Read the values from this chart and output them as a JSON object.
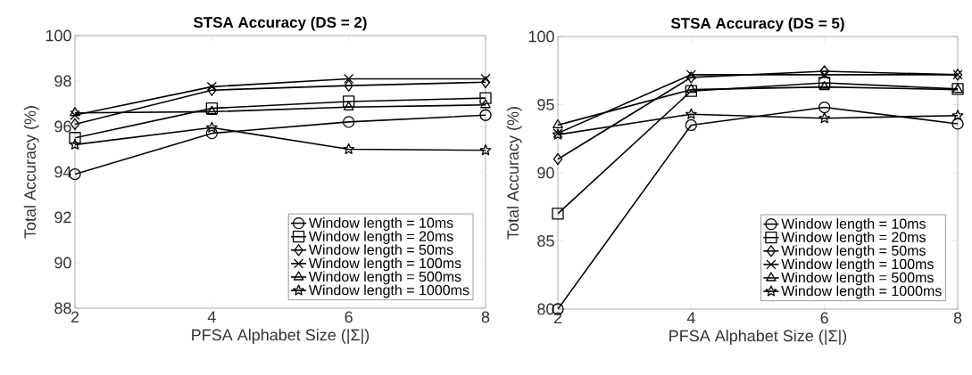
{
  "chart_data": [
    {
      "type": "line",
      "title": "STSA Accuracy (DS = 2)",
      "xlabel": "PFSA Alphabet Size (|Σ|)",
      "ylabel": "Total Accuracy (%)",
      "x": [
        2,
        4,
        6,
        8
      ],
      "xlim": [
        2,
        8
      ],
      "xticks": [
        2,
        4,
        6,
        8
      ],
      "ylim": [
        88,
        100
      ],
      "yticks": [
        88,
        90,
        92,
        94,
        96,
        98,
        100
      ],
      "legend": "bottom right",
      "series": [
        {
          "name": "Window length = 10ms",
          "color": "#000000",
          "marker": "circle",
          "values": [
            93.9,
            95.7,
            96.2,
            96.5
          ]
        },
        {
          "name": "Window length = 20ms",
          "color": "#000000",
          "marker": "square",
          "values": [
            95.5,
            96.8,
            97.1,
            97.25
          ]
        },
        {
          "name": "Window length = 50ms",
          "color": "#000000",
          "marker": "diamond",
          "values": [
            96.1,
            97.6,
            97.8,
            97.95
          ]
        },
        {
          "name": "Window length = 100ms",
          "color": "#000000",
          "marker": "cross",
          "values": [
            96.5,
            97.75,
            98.1,
            98.1
          ]
        },
        {
          "name": "Window length = 500ms",
          "color": "#000000",
          "marker": "triangle",
          "values": [
            96.6,
            96.65,
            96.85,
            96.95
          ]
        },
        {
          "name": "Window length = 1000ms",
          "color": "#000000",
          "marker": "star",
          "values": [
            95.2,
            95.95,
            95.0,
            94.95
          ]
        }
      ]
    },
    {
      "type": "line",
      "title": "STSA Accuracy (DS = 5)",
      "xlabel": "PFSA Alphabet Size (|Σ|)",
      "ylabel": "Total Accuracy (%)",
      "x": [
        2,
        4,
        6,
        8
      ],
      "xlim": [
        2,
        8
      ],
      "xticks": [
        2,
        4,
        6,
        8
      ],
      "ylim": [
        80,
        100
      ],
      "yticks": [
        80,
        85,
        90,
        95,
        100
      ],
      "legend": "bottom right",
      "series": [
        {
          "name": "Window length = 10ms",
          "color": "#000000",
          "marker": "circle",
          "values": [
            80.0,
            93.5,
            94.8,
            93.6
          ]
        },
        {
          "name": "Window length = 20ms",
          "color": "#000000",
          "marker": "square",
          "values": [
            87.0,
            96.0,
            96.6,
            96.15
          ]
        },
        {
          "name": "Window length = 50ms",
          "color": "#000000",
          "marker": "diamond",
          "values": [
            91.0,
            97.0,
            97.45,
            97.2
          ]
        },
        {
          "name": "Window length = 100ms",
          "color": "#000000",
          "marker": "cross",
          "values": [
            92.9,
            97.2,
            97.2,
            97.2
          ]
        },
        {
          "name": "Window length = 500ms",
          "color": "#000000",
          "marker": "triangle",
          "values": [
            93.5,
            96.1,
            96.3,
            96.1
          ]
        },
        {
          "name": "Window length = 1000ms",
          "color": "#000000",
          "marker": "star",
          "values": [
            92.8,
            94.3,
            94.0,
            94.2
          ]
        }
      ]
    }
  ]
}
